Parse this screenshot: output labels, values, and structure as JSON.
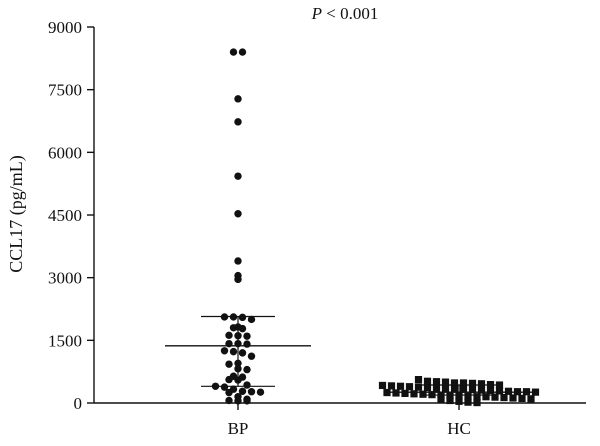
{
  "chart_data": {
    "type": "scatter",
    "title_italic": "P",
    "title_rest": " < 0.001",
    "ylabel": "CCL17 (pg/mL)",
    "xlabel": "",
    "categories": [
      "BP",
      "HC"
    ],
    "ylim": [
      0,
      9000
    ],
    "yticks": [
      0,
      1500,
      3000,
      4500,
      6000,
      7500,
      9000
    ],
    "grid": false,
    "series": [
      {
        "category": "BP",
        "marker": "circle",
        "mean": 1370,
        "error_upper": 2070,
        "error_lower": 400,
        "values": [
          8400,
          8400,
          7280,
          6730,
          5430,
          4530,
          3400,
          3050,
          2960,
          2060,
          2060,
          2050,
          2000,
          1820,
          1800,
          1780,
          1620,
          1610,
          1600,
          1420,
          1420,
          1410,
          1250,
          1230,
          1200,
          1120,
          950,
          930,
          820,
          800,
          640,
          620,
          560,
          550,
          430,
          400,
          380,
          330,
          280,
          270,
          260,
          250,
          150,
          90,
          60,
          50,
          50
        ]
      },
      {
        "category": "HC",
        "marker": "square",
        "mean": 260,
        "error_upper": 430,
        "error_lower": 190,
        "values": [
          560,
          520,
          510,
          500,
          480,
          480,
          470,
          460,
          440,
          430,
          420,
          410,
          400,
          390,
          380,
          370,
          360,
          350,
          340,
          330,
          320,
          310,
          300,
          290,
          280,
          270,
          270,
          260,
          250,
          240,
          230,
          220,
          210,
          200,
          190,
          180,
          170,
          160,
          150,
          150,
          140,
          130,
          120,
          110,
          100,
          80,
          60,
          40,
          20,
          10
        ]
      }
    ]
  }
}
